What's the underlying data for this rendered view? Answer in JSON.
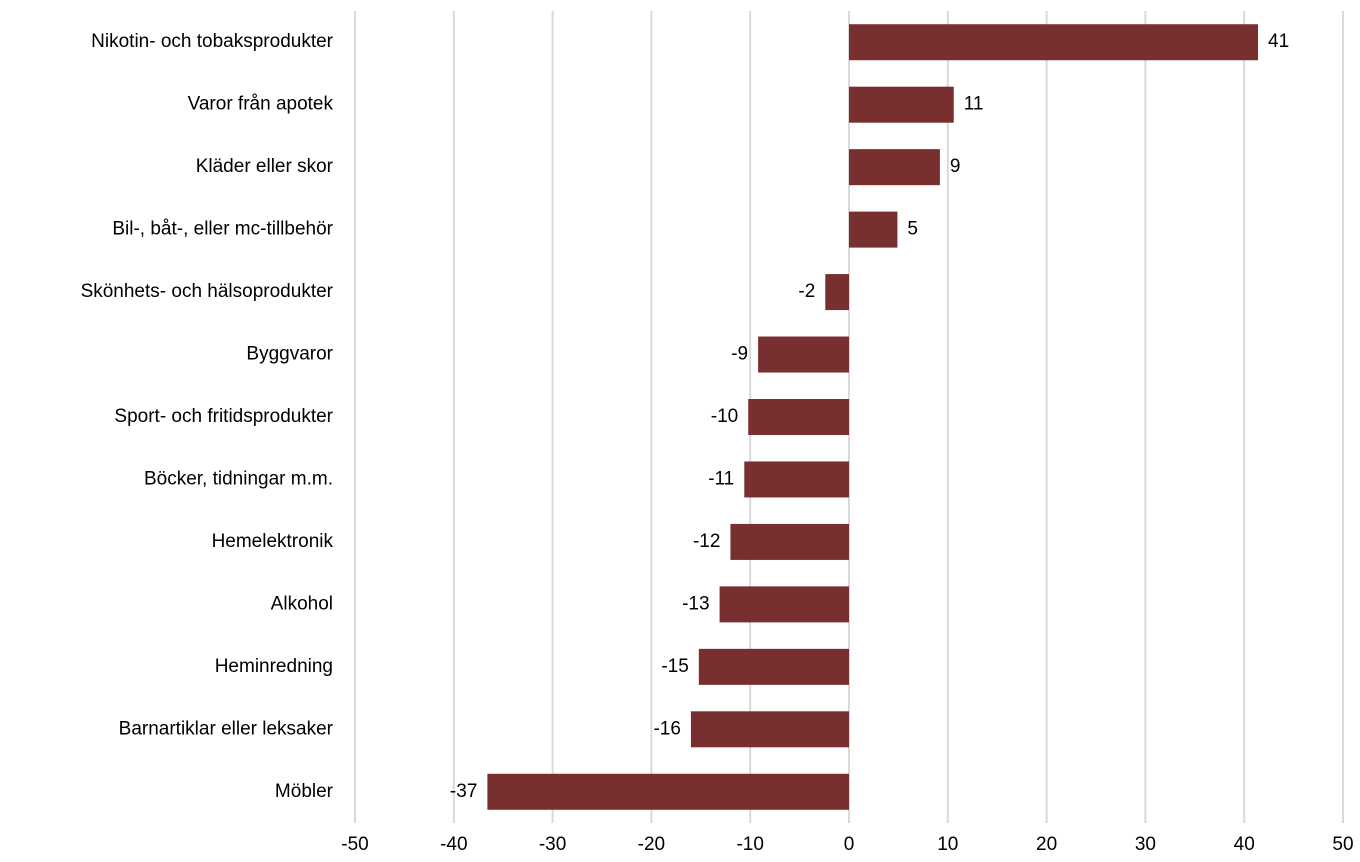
{
  "chart_data": {
    "type": "barh",
    "categories": [
      "Nikotin- och tobaksprodukter",
      "Varor från apotek",
      "Kläder eller skor",
      "Bil-, båt-, eller mc-tillbehör",
      "Skönhets- och hälsoprodukter",
      "Byggvaror",
      "Sport- och fritidsprodukter",
      "Böcker, tidningar m.m.",
      "Hemelektronik",
      "Alkohol",
      "Heminredning",
      "Barnartiklar eller leksaker",
      "Möbler"
    ],
    "values": [
      41.4,
      10.6,
      9.2,
      4.9,
      -2.4,
      -9.2,
      -10.2,
      -10.6,
      -12.0,
      -13.1,
      -15.2,
      -16.0,
      -36.6
    ],
    "value_labels": [
      "41",
      "11",
      "9",
      "5",
      "-2",
      "-9",
      "-10",
      "-11",
      "-12",
      "-13",
      "-15",
      "-16",
      "-37"
    ],
    "color": "#772f30",
    "xlim": [
      -50,
      50
    ],
    "xticks": [
      -50,
      -40,
      -30,
      -20,
      -10,
      0,
      10,
      20,
      30,
      40,
      50
    ],
    "grid": true
  }
}
